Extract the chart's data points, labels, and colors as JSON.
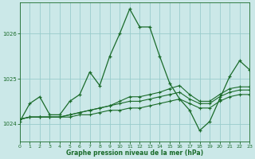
{
  "title": "Graphe pression niveau de la mer (hPa)",
  "background_color": "#cbe8e8",
  "grid_color": "#99cccc",
  "line_color": "#1a6b2a",
  "xlim": [
    0,
    23
  ],
  "ylim": [
    1023.6,
    1026.7
  ],
  "yticks": [
    1024,
    1025,
    1026
  ],
  "xticks": [
    0,
    1,
    2,
    3,
    4,
    5,
    6,
    7,
    8,
    9,
    10,
    11,
    12,
    13,
    14,
    15,
    16,
    17,
    18,
    19,
    20,
    21,
    22,
    23
  ],
  "series": [
    [
      1024.05,
      1024.45,
      1024.6,
      1024.2,
      1024.2,
      1024.5,
      1024.65,
      1025.15,
      1024.85,
      1025.5,
      1026.0,
      1026.55,
      1026.15,
      1026.15,
      1025.5,
      1024.9,
      1024.55,
      1024.3,
      1023.85,
      1024.05,
      1024.55,
      1025.05,
      1025.4,
      1025.2
    ],
    [
      1024.1,
      1024.15,
      1024.15,
      1024.15,
      1024.15,
      1024.15,
      1024.2,
      1024.2,
      1024.25,
      1024.3,
      1024.3,
      1024.35,
      1024.35,
      1024.4,
      1024.45,
      1024.5,
      1024.55,
      1024.45,
      1024.35,
      1024.35,
      1024.5,
      1024.6,
      1024.65,
      1024.65
    ],
    [
      1024.1,
      1024.15,
      1024.15,
      1024.15,
      1024.15,
      1024.2,
      1024.25,
      1024.3,
      1024.35,
      1024.4,
      1024.45,
      1024.5,
      1024.5,
      1024.55,
      1024.6,
      1024.65,
      1024.7,
      1024.55,
      1024.45,
      1024.45,
      1024.6,
      1024.7,
      1024.75,
      1024.75
    ],
    [
      1024.1,
      1024.15,
      1024.15,
      1024.15,
      1024.15,
      1024.2,
      1024.25,
      1024.3,
      1024.35,
      1024.4,
      1024.5,
      1024.6,
      1024.6,
      1024.65,
      1024.7,
      1024.78,
      1024.85,
      1024.65,
      1024.5,
      1024.5,
      1024.65,
      1024.78,
      1024.82,
      1024.82
    ]
  ]
}
